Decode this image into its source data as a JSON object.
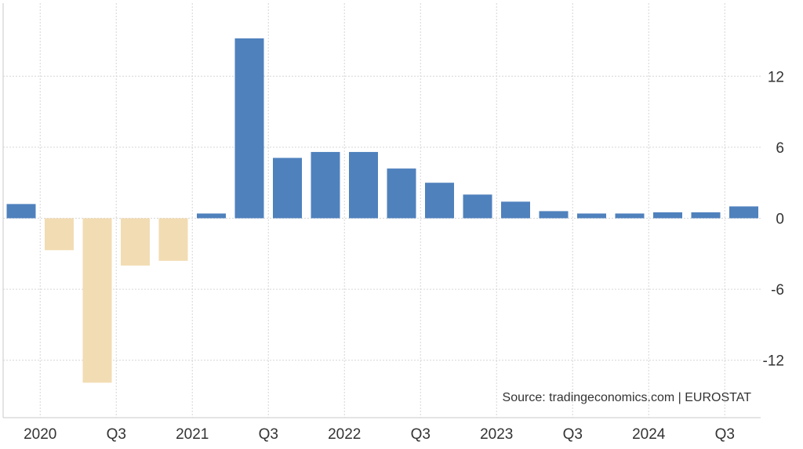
{
  "source": "Source: tradingeconomics.com | EUROSTAT",
  "colors": {
    "positive": "#4f81bd",
    "negative": "#f2dcb3",
    "grid": "#d6d6d6",
    "text": "#333333"
  },
  "chart_data": {
    "type": "bar",
    "grid": true,
    "legend": "none",
    "ylim": [
      -16,
      18
    ],
    "y_ticks": [
      12,
      6,
      0,
      -6,
      -12
    ],
    "y_tick_labels": [
      "12",
      "6",
      "0",
      "-6",
      "-12"
    ],
    "x_tick_labels": [
      {
        "label": "2020",
        "category": "2020 Q1"
      },
      {
        "label": "Q3",
        "category": "2020 Q3"
      },
      {
        "label": "2021",
        "category": "2021 Q1"
      },
      {
        "label": "Q3",
        "category": "2021 Q3"
      },
      {
        "label": "2022",
        "category": "2022 Q1"
      },
      {
        "label": "Q3",
        "category": "2022 Q3"
      },
      {
        "label": "2023",
        "category": "2023 Q1"
      },
      {
        "label": "Q3",
        "category": "2023 Q3"
      },
      {
        "label": "2024",
        "category": "2024 Q1"
      },
      {
        "label": "Q3",
        "category": "2024 Q3"
      }
    ],
    "categories": [
      "2019 Q4",
      "2020 Q1",
      "2020 Q2",
      "2020 Q3",
      "2020 Q4",
      "2021 Q1",
      "2021 Q2",
      "2021 Q3",
      "2021 Q4",
      "2022 Q1",
      "2022 Q2",
      "2022 Q3",
      "2022 Q4",
      "2023 Q1",
      "2023 Q2",
      "2023 Q3",
      "2023 Q4",
      "2024 Q1",
      "2024 Q2",
      "2024 Q3"
    ],
    "values": [
      1.2,
      -2.7,
      -13.9,
      -4.0,
      -3.6,
      0.4,
      15.2,
      5.1,
      5.6,
      5.6,
      4.2,
      3.0,
      2.0,
      1.4,
      0.6,
      0.4,
      0.4,
      0.5,
      0.5,
      1.0
    ]
  }
}
